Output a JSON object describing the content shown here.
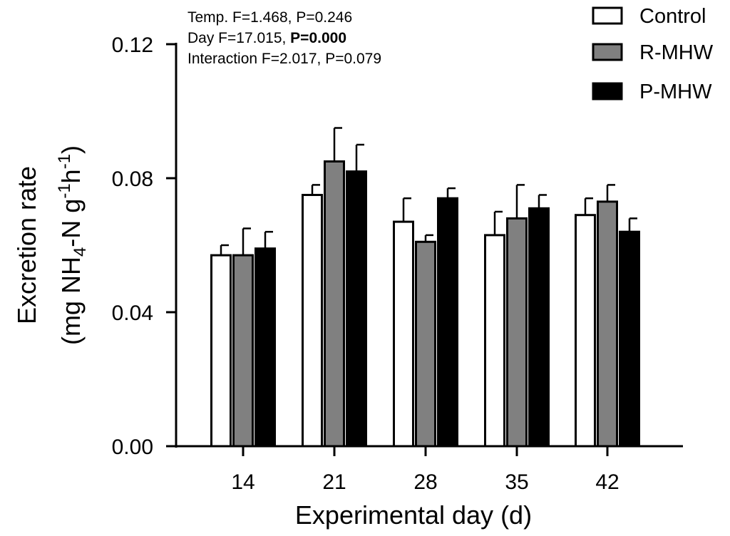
{
  "chart_data": {
    "type": "bar",
    "title": "",
    "xlabel": "Experimental day (d)",
    "ylabel": "Excretion rate",
    "ylabel_units": [
      "(mg NH",
      "4",
      "-N g",
      "-1",
      "h",
      "-1",
      ")"
    ],
    "categories": [
      "14",
      "21",
      "28",
      "35",
      "42"
    ],
    "ylim": [
      0,
      0.12
    ],
    "yticks": [
      "0.00",
      "0.04",
      "0.08",
      "0.12"
    ],
    "ytick_values": [
      0.0,
      0.04,
      0.08,
      0.12
    ],
    "series": [
      {
        "name": "Control",
        "color": "#ffffff",
        "values": [
          0.057,
          0.075,
          0.067,
          0.063,
          0.069
        ],
        "errors": [
          0.003,
          0.003,
          0.007,
          0.007,
          0.005
        ]
      },
      {
        "name": "R-MHW",
        "color": "#808080",
        "values": [
          0.057,
          0.085,
          0.061,
          0.068,
          0.073
        ],
        "errors": [
          0.008,
          0.01,
          0.002,
          0.01,
          0.005
        ]
      },
      {
        "name": "P-MHW",
        "color": "#000000",
        "values": [
          0.059,
          0.082,
          0.074,
          0.071,
          0.064
        ],
        "errors": [
          0.005,
          0.008,
          0.003,
          0.004,
          0.004
        ]
      }
    ],
    "legend_position": "top-right",
    "annotations": {
      "line1": "Temp. F=1.468, P=0.246",
      "line2_prefix": "Day F=17.015, ",
      "line2_bold": "P=0.000",
      "line3": "Interaction F=2.017, P=0.079"
    }
  }
}
